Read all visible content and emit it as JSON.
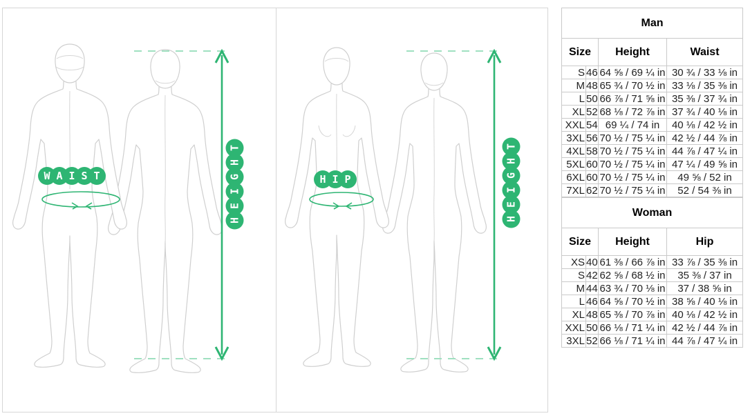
{
  "theme": {
    "accent_green": "#2eb573",
    "accent_green_light": "#9fe0c0",
    "figure_outline": "#cfcfcf",
    "table_border": "#c9c9c9"
  },
  "panels": [
    {
      "id": "man",
      "measure_label": "WAIST",
      "height_label": "HEIGHT"
    },
    {
      "id": "woman",
      "measure_label": "HIP",
      "height_label": "HEIGHT"
    }
  ],
  "size_tables": [
    {
      "title": "Man",
      "columns": [
        "Size",
        "Height",
        "Waist"
      ],
      "rows": [
        {
          "size": "S",
          "eu": "46",
          "height": "64 ⅝ / 69 ¼ in",
          "girth": "30 ¾ / 33 ⅛ in"
        },
        {
          "size": "M",
          "eu": "48",
          "height": "65 ¾ / 70 ½ in",
          "girth": "33 ⅛ / 35 ⅜ in"
        },
        {
          "size": "L",
          "eu": "50",
          "height": "66 ⅞ / 71 ⅝ in",
          "girth": "35 ⅜ / 37 ¾ in"
        },
        {
          "size": "XL",
          "eu": "52",
          "height": "68 ⅛ / 72 ⅞ in",
          "girth": "37 ¾ / 40 ⅛ in"
        },
        {
          "size": "XXL",
          "eu": "54",
          "height": "69 ¼ / 74 in",
          "girth": "40 ⅛ / 42 ½ in"
        },
        {
          "size": "3XL",
          "eu": "56",
          "height": "70 ½ / 75 ¼ in",
          "girth": "42 ½ / 44 ⅞ in"
        },
        {
          "size": "4XL",
          "eu": "58",
          "height": "70 ½ / 75 ¼ in",
          "girth": "44 ⅞ / 47 ¼ in"
        },
        {
          "size": "5XL",
          "eu": "60",
          "height": "70 ½ / 75 ¼ in",
          "girth": "47 ¼ / 49 ⅝ in"
        },
        {
          "size": "6XL",
          "eu": "60",
          "height": "70 ½ / 75 ¼ in",
          "girth": "49 ⅝ / 52 in"
        },
        {
          "size": "7XL",
          "eu": "62",
          "height": "70 ½ / 75 ¼ in",
          "girth": "52 / 54 ⅜ in"
        }
      ]
    },
    {
      "title": "Woman",
      "columns": [
        "Size",
        "Height",
        "Hip"
      ],
      "rows": [
        {
          "size": "XS",
          "eu": "40",
          "height": "61 ⅜ / 66 ⅞ in",
          "girth": "33 ⅞ / 35 ⅜ in"
        },
        {
          "size": "S",
          "eu": "42",
          "height": "62 ⅝ / 68 ½ in",
          "girth": "35 ⅜ / 37 in"
        },
        {
          "size": "M",
          "eu": "44",
          "height": "63 ¾ / 70 ⅛ in",
          "girth": "37 / 38 ⅝ in"
        },
        {
          "size": "L",
          "eu": "46",
          "height": "64 ⅝ / 70 ½ in",
          "girth": "38 ⅝ / 40 ⅛ in"
        },
        {
          "size": "XL",
          "eu": "48",
          "height": "65 ⅜ / 70 ⅞ in",
          "girth": "40 ⅛ / 42 ½ in"
        },
        {
          "size": "XXL",
          "eu": "50",
          "height": "66 ⅛ / 71 ¼ in",
          "girth": "42 ½ / 44 ⅞ in"
        },
        {
          "size": "3XL",
          "eu": "52",
          "height": "66 ⅛ / 71 ¼ in",
          "girth": "44 ⅞ / 47 ¼ in"
        }
      ]
    }
  ]
}
